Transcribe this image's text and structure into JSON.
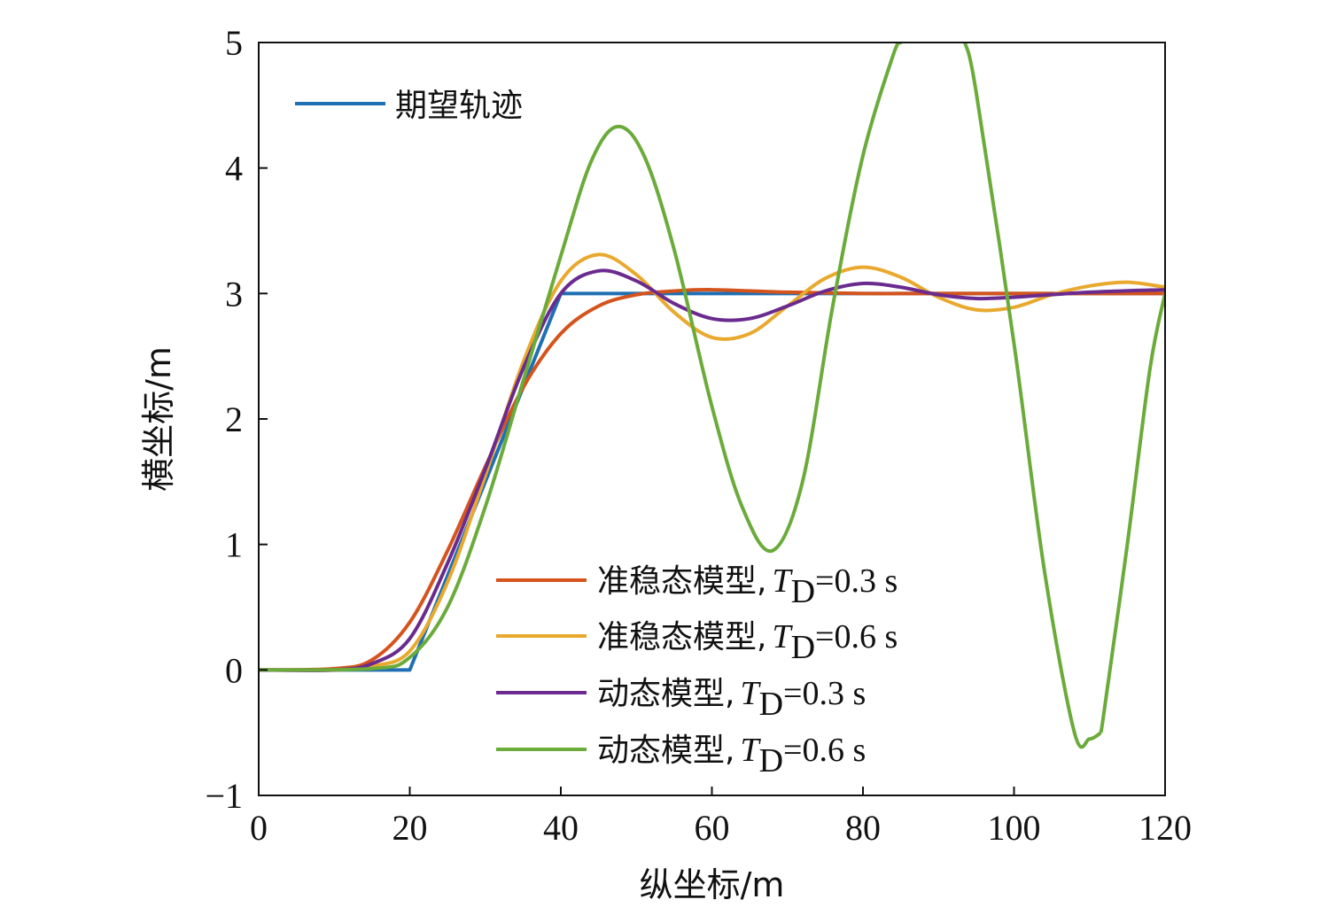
{
  "chart_data": {
    "type": "line",
    "xlabel": "纵坐标/m",
    "ylabel": "横坐标/m",
    "xlim": [
      0,
      120
    ],
    "ylim": [
      -1,
      5
    ],
    "xticks": [
      0,
      20,
      40,
      60,
      80,
      100,
      120
    ],
    "yticks": [
      -1,
      0,
      1,
      2,
      3,
      4,
      5
    ],
    "xtick_labels": [
      "0",
      "20",
      "40",
      "60",
      "80",
      "100",
      "120"
    ],
    "ytick_labels": [
      "−1",
      "0",
      "1",
      "2",
      "3",
      "4",
      "5"
    ],
    "grid": false,
    "legends": [
      {
        "placement": "top-left",
        "entries": [
          0
        ]
      },
      {
        "placement": "bottom-right",
        "entries": [
          1,
          2,
          3,
          4
        ]
      }
    ],
    "series": [
      {
        "name": "期望轨迹",
        "color": "#1f6fb4",
        "x": [
          0,
          20,
          40,
          120
        ],
        "y": [
          0,
          0,
          3,
          3
        ]
      },
      {
        "name_prefix": "准稳态模型",
        "name_suffix": "=0.3 s",
        "color": "#d4541c",
        "x": [
          0,
          10,
          15,
          20,
          25,
          30,
          35,
          40,
          45,
          50,
          55,
          60,
          70,
          80,
          90,
          100,
          110,
          120
        ],
        "y": [
          0,
          0.01,
          0.08,
          0.38,
          0.95,
          1.62,
          2.25,
          2.68,
          2.9,
          2.99,
          3.02,
          3.03,
          3.01,
          3.0,
          3.0,
          3.0,
          3.0,
          3.0
        ]
      },
      {
        "name_prefix": "准稳态模型",
        "name_suffix": "=0.6 s",
        "color": "#e8a92e",
        "x": [
          0,
          10,
          15,
          20,
          25,
          30,
          35,
          40,
          45,
          50,
          55,
          60,
          65,
          70,
          75,
          80,
          85,
          90,
          95,
          100,
          105,
          110,
          115,
          120
        ],
        "y": [
          0,
          0,
          0.03,
          0.15,
          0.7,
          1.55,
          2.45,
          3.1,
          3.31,
          3.15,
          2.85,
          2.65,
          2.68,
          2.9,
          3.12,
          3.21,
          3.13,
          2.97,
          2.87,
          2.89,
          2.99,
          3.06,
          3.09,
          3.05
        ]
      },
      {
        "name_prefix": "动态模型",
        "name_suffix": "=0.3 s",
        "color": "#6a2a8e",
        "x": [
          0,
          10,
          15,
          20,
          25,
          30,
          35,
          40,
          45,
          50,
          55,
          60,
          65,
          70,
          75,
          80,
          85,
          90,
          95,
          100,
          110,
          120
        ],
        "y": [
          0,
          0,
          0.05,
          0.25,
          0.85,
          1.6,
          2.4,
          3.0,
          3.18,
          3.1,
          2.92,
          2.8,
          2.8,
          2.9,
          3.02,
          3.08,
          3.05,
          2.99,
          2.96,
          2.97,
          3.01,
          3.03
        ]
      },
      {
        "name_prefix": "动态模型",
        "name_suffix": "=0.6 s",
        "color": "#6aab3a",
        "x": [
          0,
          15,
          20,
          25,
          30,
          35,
          40,
          44,
          47.5,
          51,
          55,
          60,
          64,
          68,
          72,
          76,
          80,
          84,
          85
        ],
        "y": [
          0,
          0.01,
          0.1,
          0.5,
          1.3,
          2.3,
          3.3,
          4.05,
          4.33,
          4.1,
          3.35,
          2.1,
          1.3,
          0.95,
          1.5,
          2.9,
          4.1,
          4.9,
          5.0
        ],
        "x2": [
          93.5,
          95,
          100,
          104,
          108,
          110,
          111.5
        ],
        "y2": [
          5.0,
          4.6,
          2.6,
          0.8,
          -0.5,
          -0.55,
          -0.5
        ],
        "x3": [
          111.5,
          112,
          115,
          118,
          120
        ],
        "y3": [
          -0.5,
          -0.3,
          1.0,
          2.4,
          3.0
        ]
      }
    ]
  }
}
